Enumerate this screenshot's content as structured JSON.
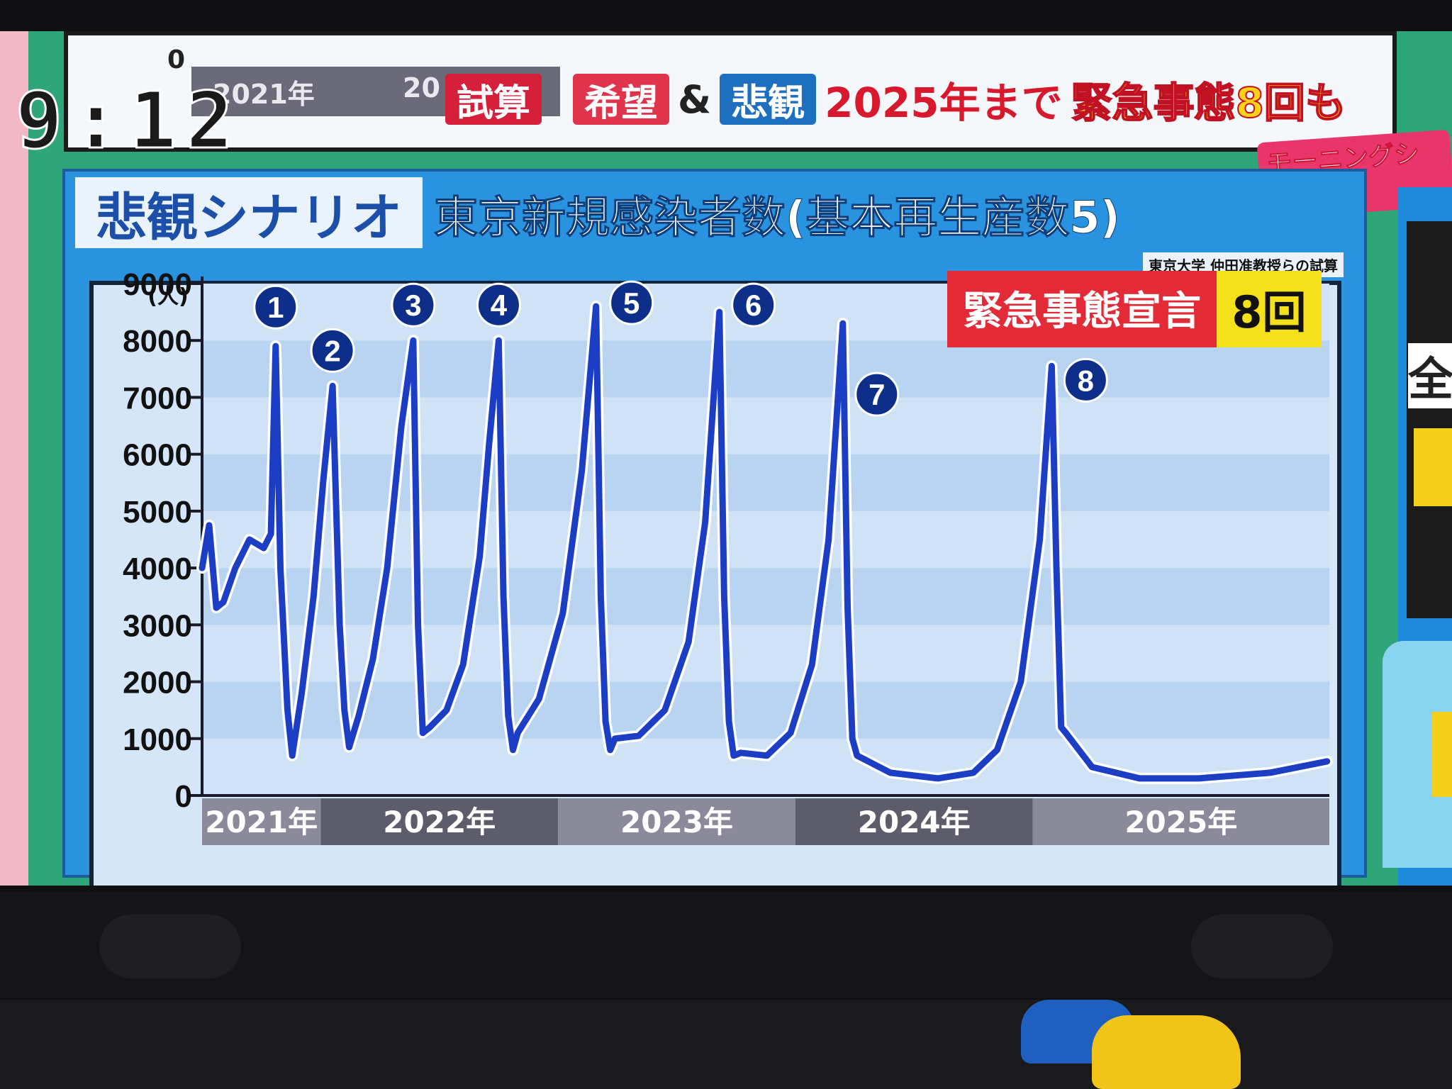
{
  "clock": "9:12",
  "header": {
    "ghost_zero": "0",
    "ghost_year_1": "2021年",
    "ghost_year_2": "20",
    "tag_estimate": "試算",
    "tag_hope": "希望",
    "tag_amp": "&",
    "tag_pessimism": "悲観",
    "headline_red": "2025年まで",
    "headline_yellow": "緊急事態8回も",
    "show_logo": "モーニングショー"
  },
  "chart_header": {
    "scenario_title": "悲観シナリオ",
    "main_title": "東京新規感染者数(基本再生産数5)",
    "source_note": "東京大学 仲田准教授らの試算"
  },
  "right_panel": {
    "glyph": "全"
  },
  "colors": {
    "line": "#1b3ec4",
    "marker": "#0d2f8a",
    "callout_red": "#e32b38",
    "callout_yellow": "#f4e11c",
    "axis_band_light": "#8b8a9a",
    "axis_band_dark": "#5d5c6b"
  },
  "chart_data": {
    "type": "line",
    "title": "東京新規感染者数(基本再生産数5)",
    "subtitle": "悲観シナリオ",
    "ylabel": "(人)",
    "ylim": [
      0,
      9000
    ],
    "yticks": [
      0,
      1000,
      2000,
      3000,
      4000,
      5000,
      6000,
      7000,
      8000,
      9000
    ],
    "ytick_labels": [
      "0",
      "1000",
      "2000",
      "3000",
      "4000",
      "5000",
      "6000",
      "7000",
      "8000",
      "9000"
    ],
    "x_unit": "year",
    "xlim": [
      2021.0,
      2025.75
    ],
    "x_categories": [
      {
        "label": "2021年",
        "start": 2021.0,
        "end": 2021.5
      },
      {
        "label": "2022年",
        "start": 2021.5,
        "end": 2022.5
      },
      {
        "label": "2023年",
        "start": 2022.5,
        "end": 2023.5
      },
      {
        "label": "2024年",
        "start": 2023.5,
        "end": 2024.5
      },
      {
        "label": "2025年",
        "start": 2024.5,
        "end": 2025.75
      }
    ],
    "grid": true,
    "series": [
      {
        "values": [
          [
            2021.0,
            4000
          ],
          [
            2021.03,
            4750
          ],
          [
            2021.06,
            3300
          ],
          [
            2021.09,
            3400
          ],
          [
            2021.14,
            4000
          ],
          [
            2021.2,
            4500
          ],
          [
            2021.26,
            4350
          ],
          [
            2021.29,
            4600
          ],
          [
            2021.31,
            7900
          ],
          [
            2021.33,
            4000
          ],
          [
            2021.36,
            1500
          ],
          [
            2021.38,
            700
          ],
          [
            2021.42,
            1800
          ],
          [
            2021.47,
            3500
          ],
          [
            2021.51,
            5500
          ],
          [
            2021.55,
            7200
          ],
          [
            2021.58,
            3000
          ],
          [
            2021.6,
            1500
          ],
          [
            2021.62,
            850
          ],
          [
            2021.66,
            1400
          ],
          [
            2021.72,
            2400
          ],
          [
            2021.78,
            4000
          ],
          [
            2021.84,
            6500
          ],
          [
            2021.89,
            8000
          ],
          [
            2021.91,
            3000
          ],
          [
            2021.93,
            1100
          ],
          [
            2021.96,
            1200
          ],
          [
            2022.03,
            1500
          ],
          [
            2022.1,
            2300
          ],
          [
            2022.17,
            4200
          ],
          [
            2022.21,
            6200
          ],
          [
            2022.25,
            8000
          ],
          [
            2022.27,
            3500
          ],
          [
            2022.29,
            1400
          ],
          [
            2022.31,
            800
          ],
          [
            2022.33,
            1100
          ],
          [
            2022.42,
            1700
          ],
          [
            2022.52,
            3200
          ],
          [
            2022.6,
            5700
          ],
          [
            2022.66,
            8600
          ],
          [
            2022.68,
            3500
          ],
          [
            2022.7,
            1300
          ],
          [
            2022.72,
            800
          ],
          [
            2022.74,
            1000
          ],
          [
            2022.84,
            1050
          ],
          [
            2022.95,
            1500
          ],
          [
            2023.05,
            2700
          ],
          [
            2023.12,
            4800
          ],
          [
            2023.18,
            8500
          ],
          [
            2023.2,
            3500
          ],
          [
            2023.22,
            1300
          ],
          [
            2023.24,
            700
          ],
          [
            2023.27,
            750
          ],
          [
            2023.38,
            700
          ],
          [
            2023.48,
            1100
          ],
          [
            2023.57,
            2300
          ],
          [
            2023.64,
            4500
          ],
          [
            2023.7,
            8300
          ],
          [
            2023.72,
            3300
          ],
          [
            2023.74,
            1000
          ],
          [
            2023.76,
            700
          ],
          [
            2023.9,
            400
          ],
          [
            2024.1,
            300
          ],
          [
            2024.25,
            400
          ],
          [
            2024.35,
            800
          ],
          [
            2024.45,
            2000
          ],
          [
            2024.53,
            4500
          ],
          [
            2024.58,
            7550
          ],
          [
            2024.6,
            4000
          ],
          [
            2024.62,
            1200
          ],
          [
            2024.64,
            1100
          ],
          [
            2024.75,
            500
          ],
          [
            2024.95,
            300
          ],
          [
            2025.2,
            300
          ],
          [
            2025.5,
            400
          ],
          [
            2025.74,
            600
          ]
        ]
      }
    ],
    "peak_markers": [
      {
        "label": "1",
        "x": 2021.31,
        "y": 7900
      },
      {
        "label": "2",
        "x": 2021.55,
        "y": 7200
      },
      {
        "label": "3",
        "x": 2021.89,
        "y": 8000
      },
      {
        "label": "4",
        "x": 2022.25,
        "y": 8000
      },
      {
        "label": "5",
        "x": 2022.66,
        "y": 8600
      },
      {
        "label": "6",
        "x": 2023.18,
        "y": 8500
      },
      {
        "label": "7",
        "x": 2023.7,
        "y": 8300
      },
      {
        "label": "8",
        "x": 2024.58,
        "y": 7550
      }
    ],
    "annotation": {
      "text": "緊急事態宣言",
      "count": "8回",
      "position": "top-right"
    }
  }
}
